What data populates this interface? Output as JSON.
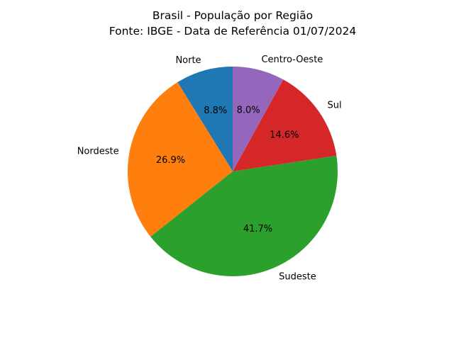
{
  "chart_data": {
    "type": "pie",
    "title": "Brasil - População por Região",
    "subtitle": "Fonte: IBGE - Data de Referência 01/07/2024",
    "categories": [
      "Norte",
      "Nordeste",
      "Sudeste",
      "Sul",
      "Centro-Oeste"
    ],
    "values": [
      8.8,
      26.9,
      41.7,
      14.6,
      8.0
    ],
    "value_labels": [
      "8.8%",
      "26.9%",
      "41.7%",
      "14.6%",
      "8.0%"
    ],
    "colors": [
      "#1f77b4",
      "#ff7f0e",
      "#2ca02c",
      "#d62728",
      "#9467bd"
    ],
    "start_angle_deg": 90,
    "direction": "counterclockwise"
  }
}
